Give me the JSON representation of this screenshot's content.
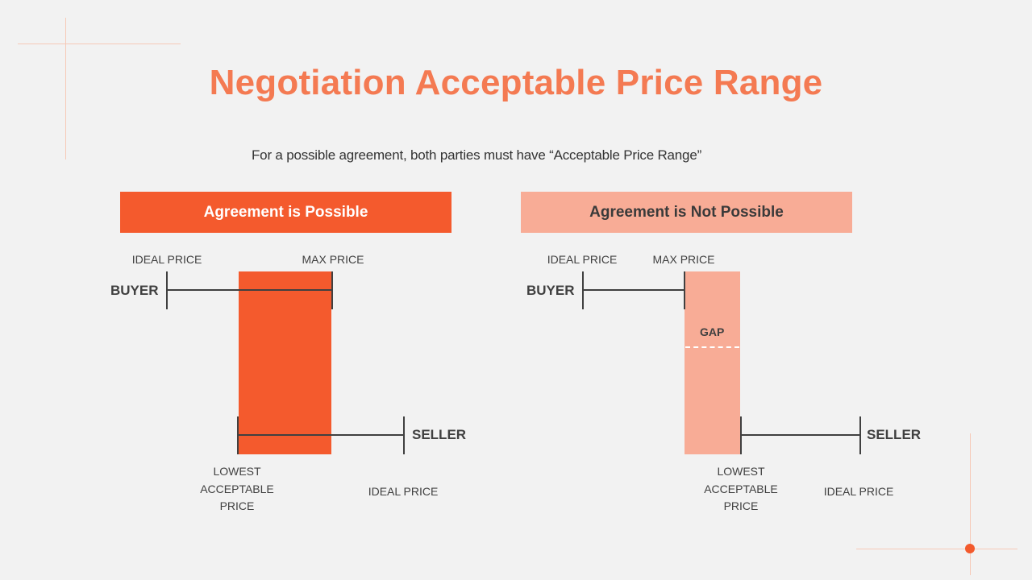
{
  "title": "Negotiation Acceptable Price Range",
  "subtitle": "For a possible agreement, both parties must have “Acceptable Price Range”",
  "colors": {
    "title": "#f47a52",
    "possible_zone": "#f45a2d",
    "not_possible_zone": "#f8ac96",
    "lines": "#404040",
    "background": "#f2f2f2"
  },
  "panels": {
    "possible": {
      "header": "Agreement is Possible",
      "buyer": {
        "label": "BUYER",
        "ideal_price_label": "IDEAL PRICE",
        "max_price_label": "MAX PRICE"
      },
      "seller": {
        "label": "SELLER",
        "lowest_label_lines": [
          "LOWEST",
          "ACCEPTABLE",
          "PRICE"
        ],
        "ideal_price_label": "IDEAL PRICE"
      }
    },
    "not_possible": {
      "header": "Agreement is Not Possible",
      "gap_label": "GAP",
      "buyer": {
        "label": "BUYER",
        "ideal_price_label": "IDEAL PRICE",
        "max_price_label": "MAX PRICE"
      },
      "seller": {
        "label": "SELLER",
        "lowest_label_lines": [
          "LOWEST",
          "ACCEPTABLE",
          "PRICE"
        ],
        "ideal_price_label": "IDEAL PRICE"
      }
    }
  }
}
